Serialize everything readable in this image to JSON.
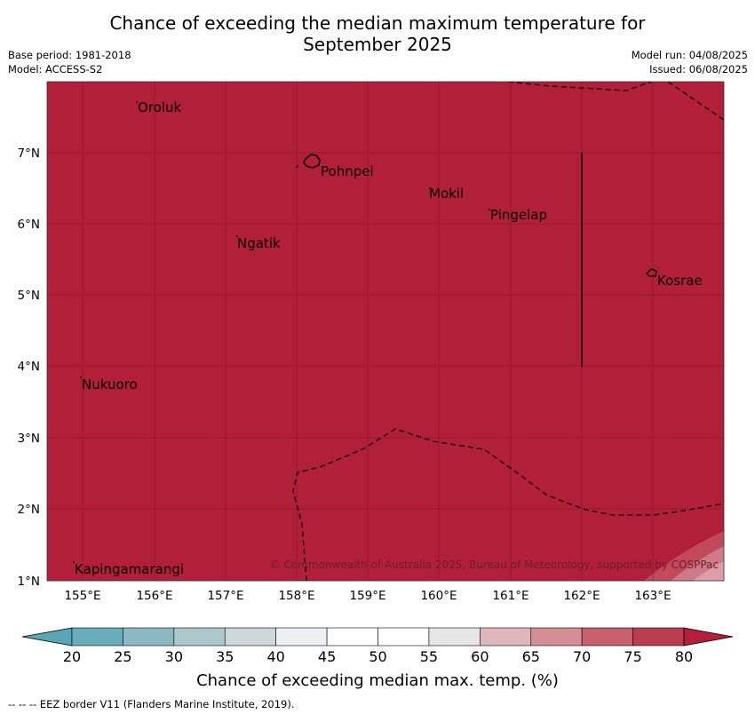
{
  "title": {
    "line1": "Chance of exceeding the median maximum temperature for",
    "line2": "September 2025"
  },
  "meta": {
    "base_period": "Base period: 1981-2018",
    "model": "Model: ACCESS-S2",
    "model_run": "Model run: 04/08/2025",
    "issued": "Issued: 06/08/2025"
  },
  "map": {
    "background_color": "#b11f38",
    "lon_ticks": [
      "155°E",
      "156°E",
      "157°E",
      "158°E",
      "159°E",
      "160°E",
      "161°E",
      "162°E",
      "163°E"
    ],
    "lat_ticks": [
      "1°N",
      "2°N",
      "3°N",
      "4°N",
      "5°N",
      "6°N",
      "7°N"
    ],
    "places": [
      "Oroluk",
      "Pohnpei",
      "Mokil",
      "Pingelap",
      "Ngatik",
      "Kosrae",
      "Nukuoro",
      "Kapingamarangi"
    ],
    "copyright": "© Commonwealth of Australia 2025, Bureau of Meteorology, supported by COSPPac"
  },
  "colorbar": {
    "ticks": [
      "20",
      "25",
      "30",
      "35",
      "40",
      "45",
      "50",
      "55",
      "60",
      "65",
      "70",
      "75",
      "80"
    ],
    "colors": [
      "#5ba6b5",
      "#69acbb",
      "#8ab9c2",
      "#adc8cb",
      "#cdd8db",
      "#eef1f3",
      "#ffffff",
      "#ffffff",
      "#e6e6e6",
      "#dfb6bb",
      "#d58d96",
      "#c8606d",
      "#b93d4e",
      "#b11f38"
    ],
    "label": "Chance of exceeding median max. temp. (%)"
  },
  "footer": "--  --  -- EEZ border V11 (Flanders Marine Institute, 2019)."
}
